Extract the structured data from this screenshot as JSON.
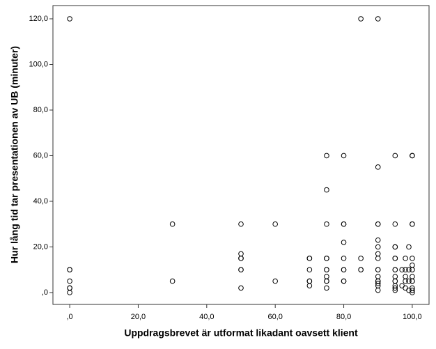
{
  "chart_data": {
    "type": "scatter",
    "x_label": "Uppdragsbrevet är utformat likadant oavsett klient",
    "y_label": "Hur lång tid tar presentationen av UB (minuter)",
    "x": [
      0,
      0,
      0,
      0,
      0,
      0,
      0,
      30,
      30,
      50,
      50,
      50,
      50,
      50,
      50,
      50,
      60,
      60,
      70,
      70,
      70,
      70,
      70,
      70,
      75,
      75,
      75,
      75,
      75,
      75,
      75,
      75,
      75,
      75,
      75,
      80,
      80,
      80,
      80,
      80,
      80,
      80,
      80,
      80,
      85,
      85,
      85,
      85,
      90,
      90,
      90,
      90,
      90,
      90,
      90,
      90,
      90,
      90,
      90,
      90,
      90,
      90,
      90,
      90,
      95,
      95,
      95,
      95,
      95,
      95,
      95,
      95,
      95,
      95,
      95,
      95,
      95,
      95,
      97,
      97,
      98,
      98,
      98,
      98,
      98,
      99,
      99,
      99,
      99,
      100,
      100,
      100,
      100,
      100,
      100,
      100,
      100,
      100,
      100,
      100,
      100,
      100,
      100
    ],
    "values": [
      120,
      10,
      10,
      5,
      2,
      2,
      0,
      30,
      5,
      30,
      17,
      15,
      15,
      10,
      10,
      2,
      30,
      5,
      15,
      15,
      10,
      5,
      5,
      3,
      60,
      45,
      30,
      15,
      15,
      10,
      10,
      7,
      5,
      5,
      2,
      60,
      30,
      30,
      22,
      15,
      10,
      10,
      5,
      5,
      120,
      15,
      10,
      10,
      120,
      55,
      30,
      30,
      23,
      20,
      17,
      15,
      10,
      10,
      7,
      5,
      5,
      4,
      3,
      1,
      60,
      30,
      20,
      20,
      15,
      15,
      10,
      10,
      7,
      5,
      5,
      3,
      2,
      1,
      10,
      3,
      15,
      10,
      7,
      5,
      2,
      20,
      10,
      5,
      1,
      60,
      60,
      30,
      30,
      15,
      12,
      10,
      10,
      7,
      5,
      5,
      2,
      1,
      0
    ],
    "color": "#000000",
    "xlim": [
      -4.9,
      104.9
    ],
    "ylim": [
      -5.2,
      125.8
    ],
    "xticks": [
      {
        "value": 0,
        "label": ",0"
      },
      {
        "value": 20,
        "label": "20,0"
      },
      {
        "value": 40,
        "label": "40,0"
      },
      {
        "value": 60,
        "label": "60,0"
      },
      {
        "value": 80,
        "label": "80,0"
      },
      {
        "value": 100,
        "label": "100,0"
      }
    ],
    "yticks": [
      {
        "value": 0,
        "label": ",0"
      },
      {
        "value": 20,
        "label": "20,0"
      },
      {
        "value": 40,
        "label": "40,0"
      },
      {
        "value": 60,
        "label": "60,0"
      },
      {
        "value": 80,
        "label": "80,0"
      },
      {
        "value": 100,
        "label": "100,0"
      },
      {
        "value": 120,
        "label": "120,0"
      }
    ]
  }
}
